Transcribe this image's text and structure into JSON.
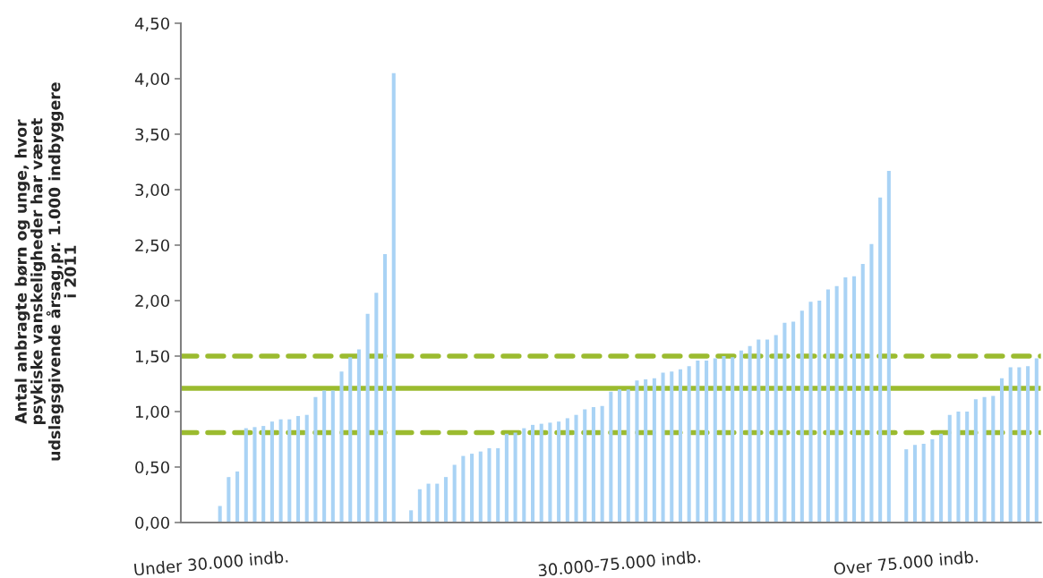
{
  "chart_data": {
    "type": "bar",
    "ylabel": "Antal anbragte børn og unge, hvor\npsykiske vanskeligheder har været\nudslagsgivende årsag,pr. 1.000 indbyggere\ni 2011",
    "categories": [
      null,
      null,
      null,
      "Under 30.000 indb.",
      null,
      null,
      null,
      null,
      null,
      null,
      null,
      null,
      null,
      null,
      null,
      null,
      null,
      null,
      null,
      null,
      null,
      null,
      null,
      null,
      null,
      null,
      null,
      null,
      null,
      null,
      null,
      null,
      null,
      null,
      null,
      null,
      null,
      null,
      null,
      null,
      null,
      null,
      null,
      null,
      null,
      null,
      null,
      null,
      null,
      null,
      "30.000-75.000 indb.",
      null,
      null,
      null,
      null,
      null,
      null,
      null,
      null,
      null,
      null,
      null,
      null,
      null,
      null,
      null,
      null,
      null,
      null,
      null,
      null,
      null,
      null,
      null,
      null,
      null,
      null,
      null,
      null,
      null,
      null,
      null,
      null,
      "Over 75.000 indb.",
      null,
      null,
      null,
      null,
      null,
      null,
      null,
      null,
      null,
      null,
      null,
      null,
      null,
      null,
      null
    ],
    "series": [
      {
        "color": "#a9d3f5",
        "values": [
          null,
          null,
          null,
          null,
          0.15,
          0.41,
          0.46,
          0.85,
          0.86,
          0.87,
          0.91,
          0.93,
          0.93,
          0.96,
          0.97,
          1.13,
          1.19,
          1.19,
          1.36,
          1.49,
          1.56,
          1.88,
          2.07,
          2.42,
          4.05,
          null,
          0.11,
          0.3,
          0.35,
          0.35,
          0.41,
          0.52,
          0.6,
          0.62,
          0.64,
          0.67,
          0.67,
          0.8,
          0.81,
          0.85,
          0.88,
          0.89,
          0.9,
          0.91,
          0.94,
          0.97,
          1.02,
          1.04,
          1.05,
          1.18,
          1.2,
          1.2,
          1.28,
          1.29,
          1.3,
          1.35,
          1.36,
          1.38,
          1.41,
          1.46,
          1.46,
          1.48,
          1.5,
          1.49,
          1.55,
          1.59,
          1.65,
          1.65,
          1.69,
          1.8,
          1.81,
          1.91,
          1.99,
          2.0,
          2.1,
          2.13,
          2.21,
          2.22,
          2.33,
          2.51,
          2.93,
          3.17,
          null,
          0.66,
          0.7,
          0.71,
          0.75,
          0.8,
          0.97,
          1.0,
          1.0,
          1.11,
          1.13,
          1.14,
          1.3,
          1.4,
          1.4,
          1.41,
          1.48
        ]
      }
    ],
    "ylim": [
      0,
      4.5
    ],
    "yticks": [
      {
        "value": 0,
        "label": "0,00"
      },
      {
        "value": 0.5,
        "label": "0,50"
      },
      {
        "value": 1,
        "label": "1,00"
      },
      {
        "value": 1.5,
        "label": "1,50"
      },
      {
        "value": 2,
        "label": "2,00"
      },
      {
        "value": 2.5,
        "label": "2,50"
      },
      {
        "value": 3,
        "label": "3,00"
      },
      {
        "value": 3.5,
        "label": "3,50"
      },
      {
        "value": 4,
        "label": "4,00"
      },
      {
        "value": 4.5,
        "label": "4,50"
      }
    ],
    "ref_lines": [
      {
        "axis": "y",
        "value": 1.21,
        "color": "#9bbb2f",
        "line_style": "solid"
      },
      {
        "axis": "y",
        "value": 1.5,
        "color": "#9bbb2f",
        "line_style": "dashed"
      },
      {
        "axis": "y",
        "value": 0.81,
        "color": "#9bbb2f",
        "line_style": "dashed"
      }
    ],
    "grid": false,
    "legend": false
  }
}
